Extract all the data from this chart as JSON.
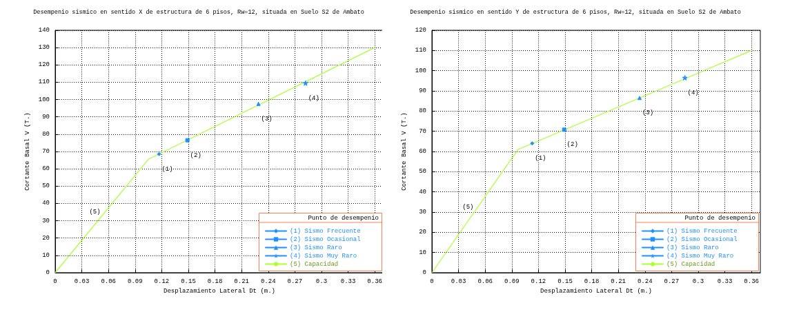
{
  "chart_data": [
    {
      "type": "line",
      "title": "Desempenio sismico en sentido X de estructura de 6 pisos, Rw=12, situada en Suelo S2 de Ambato",
      "xlabel": "Desplazamiento Lateral Dt (m.)",
      "ylabel": "Cortante Basal V (T.)",
      "legend_title": "Punto de desempenio",
      "legend": "bottom right",
      "grid": true,
      "xlim": [
        0,
        0.37
      ],
      "xticks": [
        0,
        0.03,
        0.06,
        0.09,
        0.12,
        0.15,
        0.18,
        0.21,
        0.24,
        0.27,
        0.3,
        0.33,
        0.36
      ],
      "ylim": [
        0,
        140
      ],
      "yticks": [
        0,
        10,
        20,
        30,
        40,
        50,
        60,
        70,
        80,
        90,
        100,
        110,
        120,
        130,
        140
      ],
      "series": [
        {
          "name": "(1) Sismo Frecuente",
          "color": "#1e90ff",
          "marker": "diamond",
          "x": [
            0.117
          ],
          "values": [
            68.5
          ]
        },
        {
          "name": "(2) Sismo Ocasional",
          "color": "#1e90ff",
          "marker": "square",
          "x": [
            0.149
          ],
          "values": [
            76.5
          ]
        },
        {
          "name": "(3) Sismo Raro",
          "color": "#1e90ff",
          "marker": "triangle",
          "x": [
            0.229
          ],
          "values": [
            97.5
          ]
        },
        {
          "name": "(4) Sismo Muy Raro",
          "color": "#1e90ff",
          "marker": "star",
          "x": [
            0.282
          ],
          "values": [
            109.5
          ]
        },
        {
          "name": "(5) Capacidad",
          "color": "#adff2f",
          "marker": "none",
          "x": [
            0,
            0.105,
            0.36
          ],
          "values": [
            0,
            65.5,
            130
          ]
        }
      ],
      "annotations": [
        "(1)",
        "(2)",
        "(3)",
        "(4)",
        "(5)"
      ]
    },
    {
      "type": "line",
      "title": "Desempenio sismico en sentido Y de estructura de 6 pisos, Rw=12, situada en Suelo S2 de Ambato",
      "xlabel": "Desplazamiento Lateral Dt (m.)",
      "ylabel": "Cortante Basal V (T.)",
      "legend_title": "Punto de desempenio",
      "legend": "bottom right",
      "grid": true,
      "xlim": [
        0,
        0.37
      ],
      "xticks": [
        0,
        0.03,
        0.06,
        0.09,
        0.12,
        0.15,
        0.18,
        0.21,
        0.24,
        0.27,
        0.3,
        0.33,
        0.36
      ],
      "ylim": [
        0,
        120
      ],
      "yticks": [
        0,
        10,
        20,
        30,
        40,
        50,
        60,
        70,
        80,
        90,
        100,
        110,
        120
      ],
      "series": [
        {
          "name": "(1) Sismo Frecuente",
          "color": "#1e90ff",
          "marker": "diamond",
          "x": [
            0.113
          ],
          "values": [
            64
          ]
        },
        {
          "name": "(2) Sismo Ocasional",
          "color": "#1e90ff",
          "marker": "square",
          "x": [
            0.149
          ],
          "values": [
            70.8
          ]
        },
        {
          "name": "(3) Sismo Raro",
          "color": "#1e90ff",
          "marker": "triangle",
          "x": [
            0.234
          ],
          "values": [
            86.5
          ]
        },
        {
          "name": "(4) Sismo Muy Raro",
          "color": "#1e90ff",
          "marker": "star",
          "x": [
            0.285
          ],
          "values": [
            96.5
          ]
        },
        {
          "name": "(5) Capacidad",
          "color": "#adff2f",
          "marker": "none",
          "x": [
            0,
            0.097,
            0.36
          ],
          "values": [
            0,
            61,
            110
          ]
        }
      ],
      "annotations": [
        "(1)",
        "(2)",
        "(3)",
        "(4)",
        "(5)"
      ]
    }
  ]
}
